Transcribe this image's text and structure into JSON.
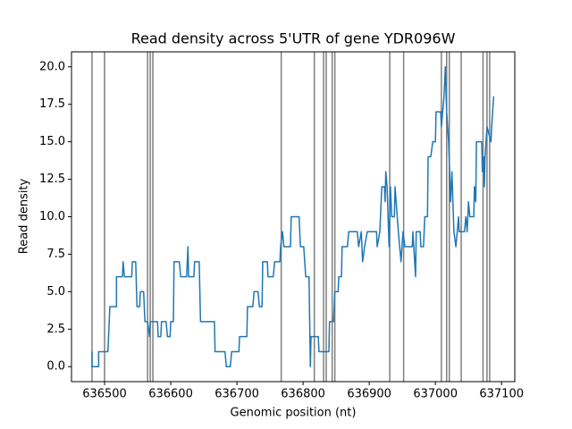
{
  "chart_data": {
    "type": "line",
    "title": "Read density across 5'UTR of gene YDR096W",
    "xlabel": "Genomic position (nt)",
    "ylabel": "Read density",
    "color": "#1f77b4",
    "vline_color": "#7f7f7f",
    "x": [
      636481,
      636481,
      636491,
      636491,
      636505,
      636507,
      636508,
      636518,
      636518,
      636527,
      636528,
      636530,
      636541,
      636542,
      636547,
      636549,
      636553,
      636554,
      636559,
      636561,
      636565,
      636568,
      636569,
      636580,
      636581,
      636585,
      636586,
      636593,
      636595,
      636599,
      636600,
      636604,
      636605,
      636613,
      636615,
      636624,
      636626,
      636627,
      636635,
      636636,
      636643,
      636645,
      636666,
      636667,
      636682,
      636684,
      636690,
      636692,
      636703,
      636704,
      636715,
      636716,
      636724,
      636726,
      636732,
      636734,
      636738,
      636739,
      636746,
      636747,
      636755,
      636757,
      636765,
      636766,
      636769,
      636771,
      636781,
      636782,
      636794,
      636796,
      636801,
      636804,
      636809,
      636811,
      636812,
      636823,
      636824,
      636839,
      636840,
      636846,
      636848,
      636853,
      636854,
      636858,
      636859,
      636867,
      636869,
      636882,
      636884,
      636888,
      636890,
      636893,
      636897,
      636911,
      636912,
      636916,
      636919,
      636923,
      636924,
      636925,
      636927,
      636930,
      636932,
      636934,
      636938,
      636939,
      636944,
      636948,
      636951,
      636954,
      636965,
      636966,
      636970,
      636971,
      636977,
      636978,
      636982,
      636984,
      636988,
      636989,
      636993,
      636996,
      637000,
      637001,
      637008,
      637009,
      637013,
      637015,
      637017,
      637020,
      637023,
      637025,
      637028,
      637031,
      637035,
      637036,
      637044,
      637046,
      637048,
      637050,
      637052,
      637058,
      637059,
      637061,
      637062,
      637070,
      637071,
      637073,
      637074,
      637075,
      637078,
      637084,
      637085,
      637088,
      637089
    ],
    "values": [
      1,
      0,
      0,
      1,
      1,
      3,
      4,
      4,
      6,
      6,
      7,
      6,
      6,
      7,
      7,
      4,
      4,
      5,
      5,
      3,
      3,
      2,
      3,
      3,
      2,
      2,
      3,
      3,
      2,
      2,
      3,
      3,
      7,
      7,
      6,
      6,
      8,
      6,
      6,
      7,
      7,
      3,
      3,
      1,
      1,
      0,
      0,
      1,
      1,
      2,
      2,
      4,
      4,
      5,
      5,
      4,
      4,
      7,
      7,
      6,
      6,
      7,
      7,
      8,
      9,
      8,
      8,
      10,
      10,
      8,
      8,
      6,
      6,
      0,
      2,
      2,
      1,
      1,
      3,
      3,
      5,
      5,
      6,
      6,
      8,
      8,
      9,
      9,
      8,
      9,
      7,
      8,
      9,
      9,
      8,
      9,
      12,
      12,
      11,
      13,
      12,
      8,
      12,
      10,
      10,
      12,
      9,
      7,
      9,
      8,
      8,
      9,
      6,
      9,
      9,
      8,
      8,
      10,
      10,
      14,
      14,
      15,
      15,
      17,
      17,
      16,
      18,
      20,
      17,
      15,
      11,
      13,
      9,
      8,
      10,
      9,
      9,
      10,
      9,
      11,
      10,
      10,
      12,
      11,
      15,
      15,
      13,
      14,
      12,
      14,
      16,
      15,
      16,
      18,
      18
    ],
    "vlines": [
      636481,
      636500,
      636565,
      636569,
      636573,
      636767,
      636817,
      636831,
      636835,
      636844,
      636848,
      636931,
      636952,
      637009,
      637017,
      637021,
      637039,
      637072,
      637078,
      637082
    ],
    "xlim": [
      636450,
      637120
    ],
    "xticks": [
      636500,
      636600,
      636700,
      636800,
      636900,
      637000,
      637100
    ],
    "ylim": [
      -1,
      21
    ],
    "yticks": [
      {
        "value": 0,
        "label": "0.0"
      },
      2.5,
      {
        "value": 5,
        "label": "5.0"
      },
      7.5,
      {
        "value": 10,
        "label": "10.0"
      },
      12.5,
      {
        "value": 15,
        "label": "15.0"
      },
      17.5,
      {
        "value": 20,
        "label": "20.0"
      }
    ]
  }
}
